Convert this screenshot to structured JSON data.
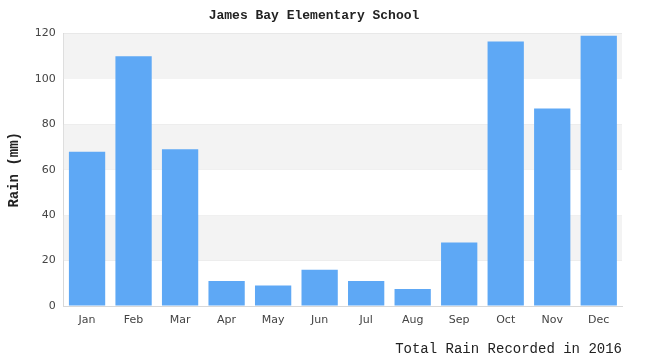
{
  "chart_data": {
    "type": "bar",
    "title": "James Bay Elementary School",
    "y_label": "Rain (mm)",
    "x_label": "Total Rain Recorded in 2016",
    "categories": [
      "Jan",
      "Feb",
      "Mar",
      "Apr",
      "May",
      "Jun",
      "Jul",
      "Aug",
      "Sep",
      "Oct",
      "Nov",
      "Dec"
    ],
    "values": [
      68,
      110,
      69,
      11,
      9,
      16,
      11,
      7.5,
      28,
      116.5,
      87,
      119
    ],
    "color": "#5ea8f5",
    "ylim": [
      0,
      120
    ],
    "yticks": [
      0,
      20,
      40,
      60,
      80,
      100,
      120
    ],
    "grid": true
  }
}
